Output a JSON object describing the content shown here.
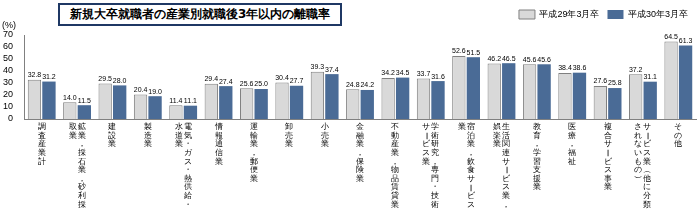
{
  "chart_data": {
    "type": "bar",
    "title": "新規大卒就職者の産業別就職後3年以内の離職率",
    "y_label": "(%)",
    "categories": [
      "調査産業計",
      "鉱業，採石業，砂利採取業",
      "建設業",
      "製造業",
      "電気・ガス・熱供給・水道業",
      "情報通信業",
      "運輸業，郵便業",
      "卸売業",
      "小売業",
      "金融業，保険業",
      "不動産業，物品賃貸業",
      "学術研究，専門・技術サービス業",
      "宿泊業，飲食サービス業",
      "生活関連サービス業，娯楽業",
      "教育，学習支援業",
      "医療，福祉",
      "複合サービス事業",
      "サービス業（他に分類されないもの）",
      "その他"
    ],
    "series": [
      {
        "name": "平成29年3月卒",
        "color": "#d9d9d9",
        "values": [
          32.8,
          14.0,
          29.5,
          20.4,
          11.4,
          29.4,
          25.6,
          30.4,
          39.3,
          24.8,
          34.2,
          33.7,
          52.6,
          46.2,
          45.6,
          38.4,
          27.6,
          37.2,
          64.5
        ],
        "value_labels": [
          "32.8",
          "14.0",
          "29.5",
          "20.4",
          "11.4",
          "29.4",
          "25.6",
          "30.4",
          "39.3",
          "24.8",
          "34.2",
          "33.7",
          "52.6",
          "46.2",
          "45.6",
          "38.4",
          "27.6",
          "37.2",
          "64.5"
        ]
      },
      {
        "name": "平成30年3月卒",
        "color": "#4a6b96",
        "values": [
          31.2,
          11.5,
          28.0,
          19.0,
          11.1,
          27.4,
          25.0,
          27.7,
          37.4,
          24.2,
          34.5,
          31.6,
          51.5,
          46.5,
          45.6,
          38.6,
          25.8,
          31.1,
          61.3
        ],
        "value_labels": [
          "31.2",
          "11.5",
          "28.0",
          "19.0",
          "11.1",
          "27.4",
          "25.0",
          "27.7",
          "37.4",
          "24.2",
          "34.5",
          "31.6",
          "51.5",
          "46.5",
          "45.6",
          "38.6",
          "25.8",
          "31.1",
          "61.3"
        ]
      }
    ],
    "ylim": [
      0,
      70
    ],
    "yticks": [
      0,
      10,
      20,
      30,
      40,
      50,
      60,
      70
    ],
    "grid": false,
    "legend": "top-right",
    "data_labels": true
  }
}
